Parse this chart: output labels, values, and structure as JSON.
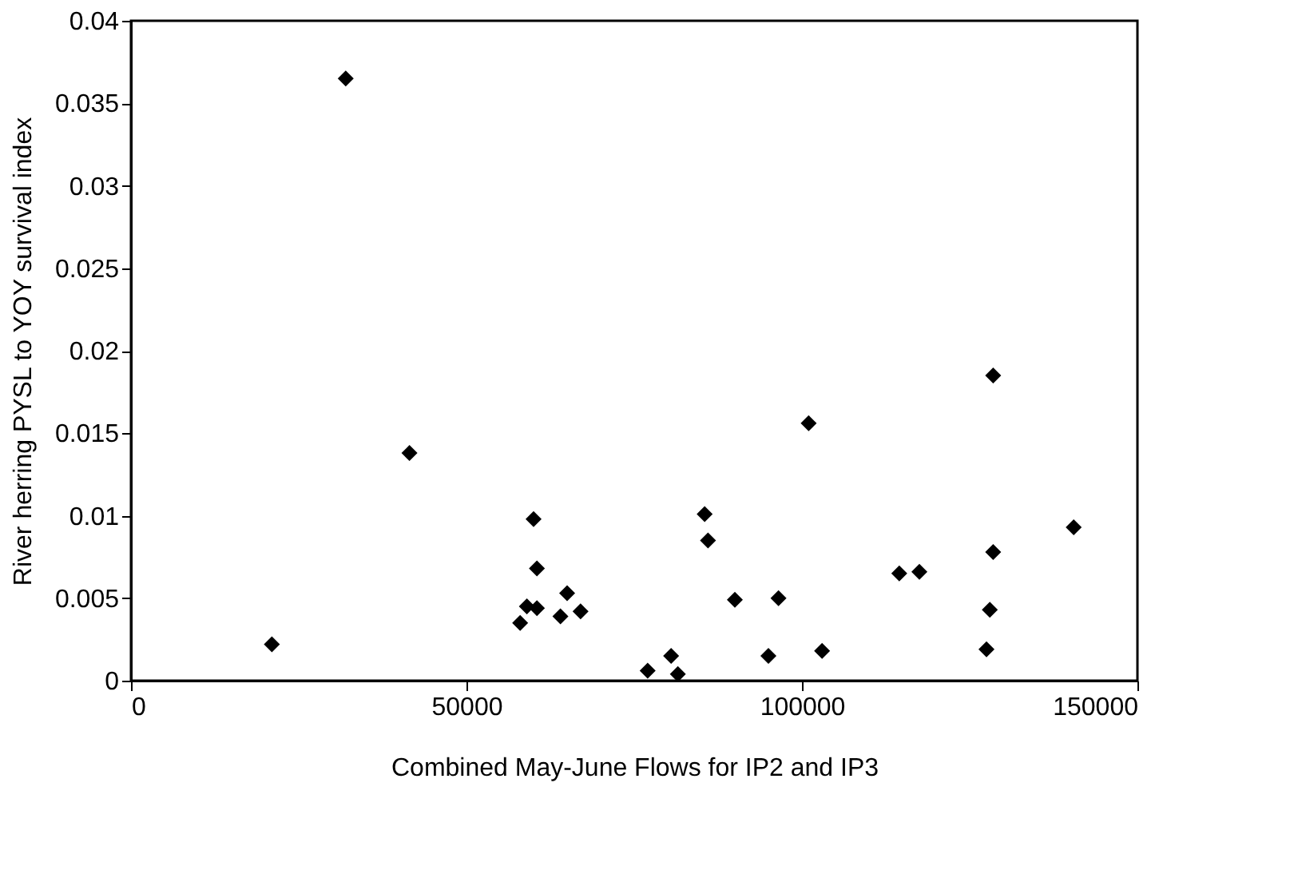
{
  "chart_data": {
    "type": "scatter",
    "xlabel": "Combined May-June Flows for IP2 and IP3",
    "ylabel": "River herring PYSL to YOY survival index",
    "x": [
      21000,
      32000,
      41500,
      58000,
      59000,
      60500,
      60000,
      60500,
      64000,
      65000,
      67000,
      77000,
      80500,
      81500,
      85500,
      86000,
      90000,
      95000,
      96500,
      101000,
      103000,
      114500,
      117500,
      127500,
      128000,
      128500,
      128500,
      140500
    ],
    "series": [
      {
        "color": "#000000",
        "values": [
          0.0022,
          0.0365,
          0.0138,
          0.0035,
          0.0045,
          0.0044,
          0.0098,
          0.0068,
          0.0039,
          0.0053,
          0.0042,
          0.0006,
          0.0015,
          0.0004,
          0.0101,
          0.0085,
          0.0049,
          0.0015,
          0.005,
          0.0156,
          0.0018,
          0.0065,
          0.0066,
          0.0019,
          0.0043,
          0.0078,
          0.0185,
          0.0093
        ]
      }
    ],
    "xlim": [
      0,
      150000
    ],
    "xticks": [
      0,
      50000,
      100000,
      150000
    ],
    "ylim": [
      0,
      0.04
    ],
    "yticks": [
      0,
      0.005,
      0.01,
      0.015,
      0.02,
      0.025,
      0.03,
      0.035,
      0.04
    ],
    "marker": "diamond",
    "grid": false
  }
}
